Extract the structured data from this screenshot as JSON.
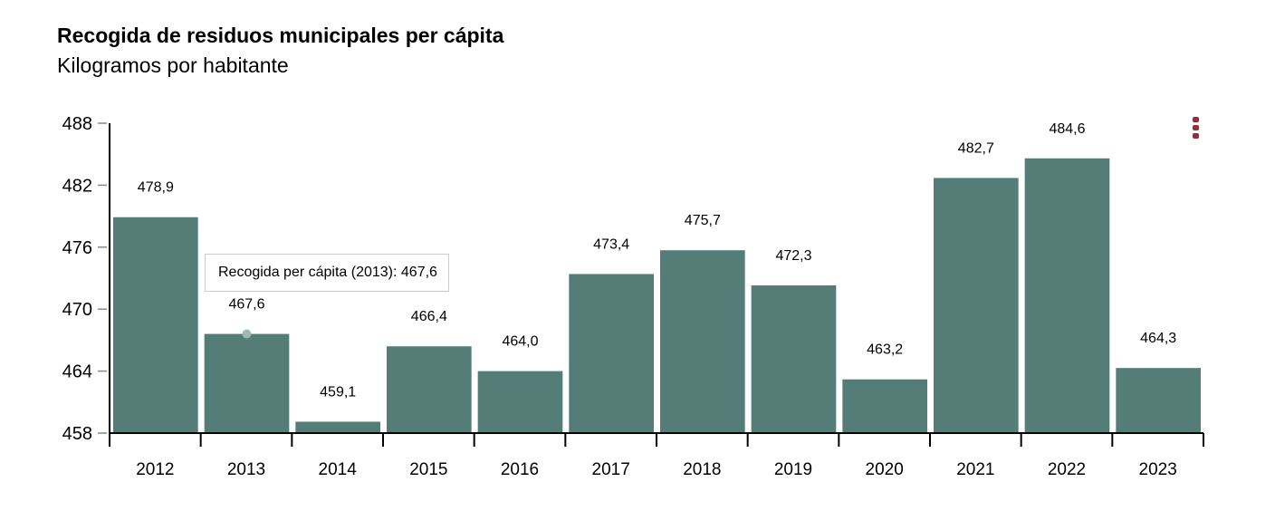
{
  "chart_data": {
    "type": "bar",
    "title": "Recogida de residuos municipales per cápita",
    "subtitle": "Kilogramos por habitante",
    "categories": [
      "2012",
      "2013",
      "2014",
      "2015",
      "2016",
      "2017",
      "2018",
      "2019",
      "2020",
      "2021",
      "2022",
      "2023"
    ],
    "values": [
      478.9,
      467.6,
      459.1,
      466.4,
      464.0,
      473.4,
      475.7,
      472.3,
      463.2,
      482.7,
      484.6,
      464.3
    ],
    "value_labels": [
      "478,9",
      "467,6",
      "459,1",
      "466,4",
      "464,0",
      "473,4",
      "475,7",
      "472,3",
      "463,2",
      "482,7",
      "484,6",
      "464,3"
    ],
    "yticks": [
      "458",
      "464",
      "470",
      "476",
      "482",
      "488"
    ],
    "ytick_values": [
      458,
      464,
      470,
      476,
      482,
      488
    ],
    "ylim": [
      458,
      488
    ],
    "grid": false,
    "bar_color": "#557d78",
    "highlighted_category": "2013"
  },
  "tooltip": {
    "text": "Recogida per cápita (2013): 467,6"
  },
  "menu": {
    "icon": "more-vertical-icon",
    "color": "#9b2a3a"
  }
}
